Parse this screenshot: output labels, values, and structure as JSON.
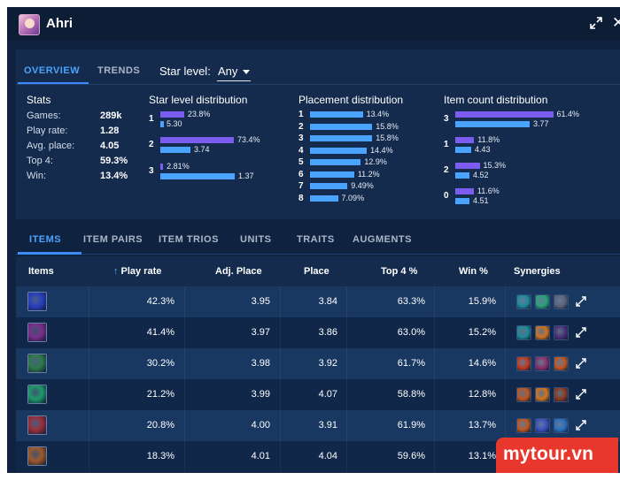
{
  "header": {
    "champion": "Ahri",
    "expand_icon": "expand-arrows-icon",
    "close_label": "✕"
  },
  "overview": {
    "tabs": [
      {
        "label": "OVERVIEW",
        "active": true
      },
      {
        "label": "TRENDS",
        "active": false
      }
    ],
    "star_level_label": "Star level:",
    "star_level_value": "Any",
    "stats": {
      "title": "Stats",
      "rows": [
        {
          "label": "Games:",
          "value": "289k"
        },
        {
          "label": "Play rate:",
          "value": "1.28"
        },
        {
          "label": "Avg. place:",
          "value": "4.05"
        },
        {
          "label": "Top 4:",
          "value": "59.3%"
        },
        {
          "label": "Win:",
          "value": "13.4%"
        }
      ]
    },
    "star_level_distribution": {
      "title": "Star level distribution",
      "groups": [
        {
          "label": "1",
          "percent": "23.8%",
          "percent_value": 23.8,
          "avg_place": "5.30",
          "avg_value": 5.3
        },
        {
          "label": "2",
          "percent": "73.4%",
          "percent_value": 73.4,
          "avg_place": "3.74",
          "avg_value": 3.74
        },
        {
          "label": "3",
          "percent": "2.81%",
          "percent_value": 2.81,
          "avg_place": "1.37",
          "avg_value": 1.37
        }
      ]
    },
    "placement_distribution": {
      "title": "Placement distribution",
      "rows": [
        {
          "label": "1",
          "percent": "13.4%",
          "value": 13.4
        },
        {
          "label": "2",
          "percent": "15.8%",
          "value": 15.8
        },
        {
          "label": "3",
          "percent": "15.8%",
          "value": 15.8
        },
        {
          "label": "4",
          "percent": "14.4%",
          "value": 14.4
        },
        {
          "label": "5",
          "percent": "12.9%",
          "value": 12.9
        },
        {
          "label": "6",
          "percent": "11.2%",
          "value": 11.2
        },
        {
          "label": "7",
          "percent": "9.49%",
          "value": 9.49
        },
        {
          "label": "8",
          "percent": "7.09%",
          "value": 7.09
        }
      ]
    },
    "item_count_distribution": {
      "title": "Item count distribution",
      "groups": [
        {
          "label": "3",
          "percent": "61.4%",
          "percent_value": 61.4,
          "avg_place": "3.77",
          "avg_value": 3.77
        },
        {
          "label": "1",
          "percent": "11.8%",
          "percent_value": 11.8,
          "avg_place": "4.43",
          "avg_value": 4.43
        },
        {
          "label": "2",
          "percent": "15.3%",
          "percent_value": 15.3,
          "avg_place": "4.52",
          "avg_value": 4.52
        },
        {
          "label": "0",
          "percent": "11.6%",
          "percent_value": 11.6,
          "avg_place": "4.51",
          "avg_value": 4.51
        }
      ]
    }
  },
  "table": {
    "tabs": [
      {
        "label": "ITEMS",
        "active": true
      },
      {
        "label": "ITEM PAIRS",
        "active": false
      },
      {
        "label": "ITEM TRIOS",
        "active": false
      },
      {
        "label": "UNITS",
        "active": false
      },
      {
        "label": "TRAITS",
        "active": false
      },
      {
        "label": "AUGMENTS",
        "active": false
      }
    ],
    "columns": [
      "Items",
      "Play rate",
      "Adj. Place",
      "Place",
      "Top 4 %",
      "Win %",
      "Synergies"
    ],
    "sort_icon": "arrow-up-icon",
    "rows": [
      {
        "item_icon": "blue-orb-item-icon",
        "item_color": "#2a3fbf",
        "play_rate": "42.3%",
        "adj_place": "3.95",
        "place": "3.84",
        "top4": "63.3%",
        "win": "15.9%",
        "synergies": [
          "#1f8a9a",
          "#2aa37a",
          "#5c6478"
        ]
      },
      {
        "item_icon": "purple-claw-item-icon",
        "item_color": "#7a2f8a",
        "play_rate": "41.4%",
        "adj_place": "3.97",
        "place": "3.86",
        "top4": "63.0%",
        "win": "15.2%",
        "synergies": [
          "#1f8a9a",
          "#d0741f",
          "#4a2f7a"
        ]
      },
      {
        "item_icon": "green-blade-item-icon",
        "item_color": "#2f7a4a",
        "play_rate": "30.2%",
        "adj_place": "3.98",
        "place": "3.92",
        "top4": "61.7%",
        "win": "14.6%",
        "synergies": [
          "#c0391f",
          "#8a2f6a",
          "#c0561f"
        ]
      },
      {
        "item_icon": "green-gem-item-icon",
        "item_color": "#1f9a6a",
        "play_rate": "21.2%",
        "adj_place": "3.99",
        "place": "4.07",
        "top4": "58.8%",
        "win": "12.8%",
        "synergies": [
          "#c0561f",
          "#d0741f",
          "#8a3a1f"
        ]
      },
      {
        "item_icon": "red-blade-item-icon",
        "item_color": "#9a2f3a",
        "play_rate": "20.8%",
        "adj_place": "4.00",
        "place": "3.91",
        "top4": "61.9%",
        "win": "13.7%",
        "synergies": [
          "#c0561f",
          "#3a4fbf",
          "#2a6fbf"
        ]
      },
      {
        "item_icon": "gold-shield-item-icon",
        "item_color": "#a05a2a",
        "play_rate": "18.3%",
        "adj_place": "4.01",
        "place": "4.04",
        "top4": "59.6%",
        "win": "13.1%",
        "synergies": [
          "#c0561f",
          "#d0741f",
          "#8a3a1f"
        ]
      }
    ]
  },
  "watermark": "mytour.vn"
}
